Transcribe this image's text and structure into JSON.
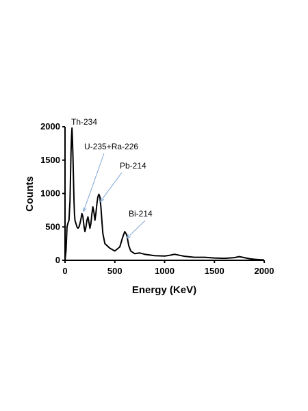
{
  "chart_data": {
    "type": "line",
    "title": "",
    "xlabel": "Energy (KeV)",
    "ylabel": "Counts",
    "xlim": [
      0,
      2000
    ],
    "ylim": [
      0,
      2000
    ],
    "xticks": [
      0,
      500,
      1000,
      1500,
      2000
    ],
    "yticks": [
      0,
      500,
      1000,
      1500,
      2000
    ],
    "grid": false,
    "series": [
      {
        "name": "",
        "x": [
          0,
          10,
          20,
          30,
          40,
          50,
          60,
          65,
          70,
          75,
          80,
          85,
          90,
          95,
          100,
          110,
          120,
          130,
          140,
          150,
          160,
          170,
          180,
          190,
          200,
          210,
          220,
          230,
          240,
          250,
          260,
          270,
          280,
          290,
          300,
          310,
          320,
          330,
          340,
          350,
          360,
          370,
          380,
          400,
          450,
          500,
          550,
          580,
          600,
          620,
          640,
          660,
          700,
          750,
          800,
          900,
          1000,
          1050,
          1100,
          1150,
          1200,
          1300,
          1400,
          1500,
          1600,
          1700,
          1750,
          1800,
          1850,
          1900,
          2000
        ],
        "y": [
          0,
          150,
          500,
          560,
          600,
          900,
          1600,
          1850,
          1980,
          1800,
          1550,
          1200,
          900,
          700,
          600,
          550,
          500,
          480,
          500,
          550,
          620,
          700,
          650,
          520,
          430,
          500,
          600,
          650,
          570,
          480,
          550,
          700,
          800,
          720,
          600,
          700,
          850,
          950,
          990,
          950,
          800,
          600,
          400,
          250,
          180,
          140,
          200,
          350,
          430,
          380,
          220,
          140,
          100,
          110,
          90,
          70,
          65,
          75,
          90,
          75,
          60,
          45,
          45,
          35,
          30,
          40,
          55,
          40,
          25,
          15,
          5
        ]
      }
    ],
    "annotations": [
      {
        "text": "Th-234",
        "x": 75,
        "y": 1980
      },
      {
        "text": "U-235+Ra-226",
        "x": 185,
        "y": 730
      },
      {
        "text": "Pb-214",
        "x": 355,
        "y": 880
      },
      {
        "text": "Bi-214",
        "x": 620,
        "y": 330
      }
    ]
  }
}
